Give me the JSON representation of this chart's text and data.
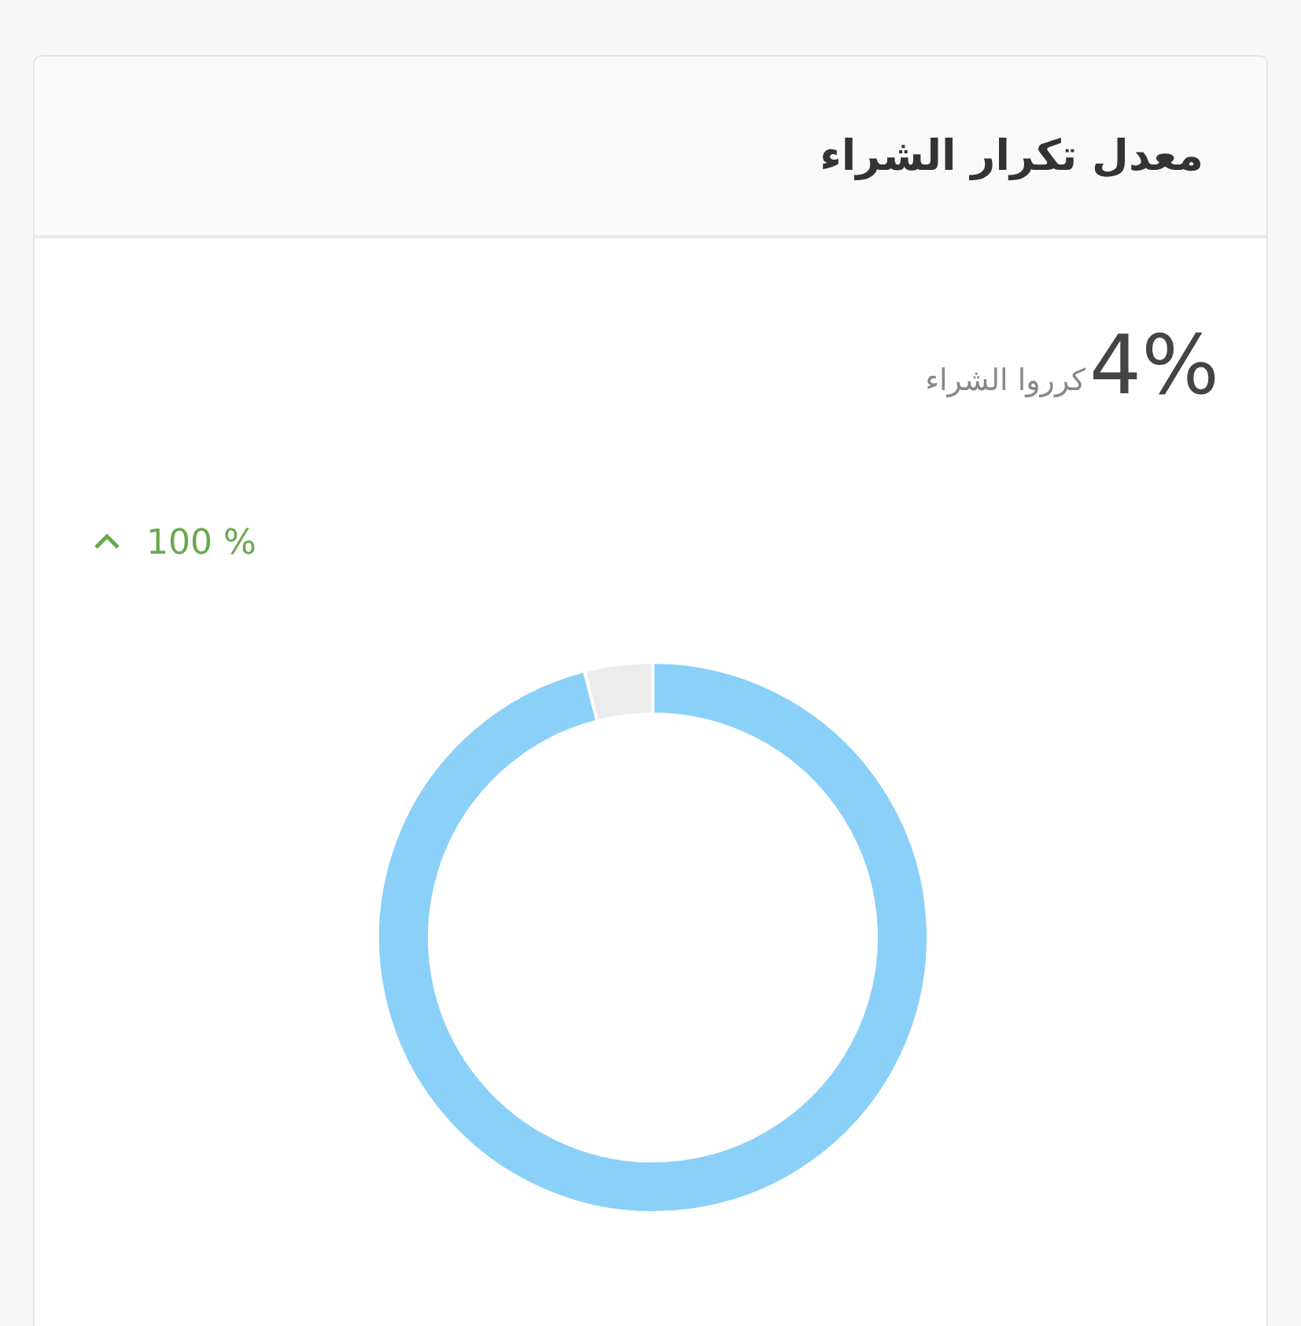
{
  "chart_data": {
    "type": "donut",
    "title": "معدل تكرار الشراء",
    "annotations": [
      "4%",
      "كرروا الشراء",
      "100 %"
    ],
    "categories": [
      null,
      null
    ],
    "values": [
      96,
      4
    ],
    "colors": [
      "#8ad0f9",
      "#ececec"
    ]
  }
}
